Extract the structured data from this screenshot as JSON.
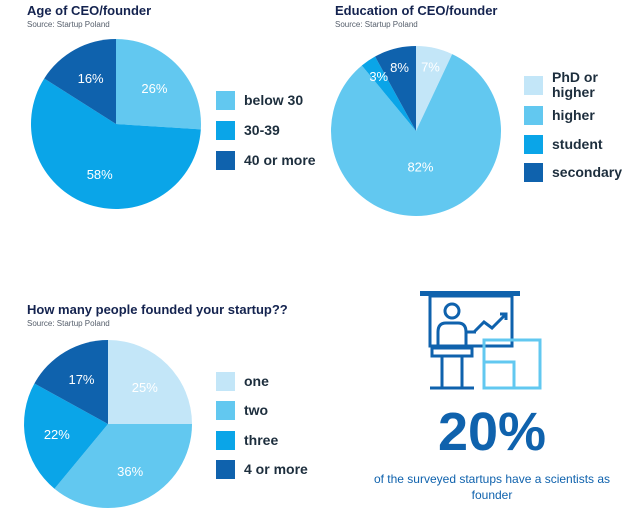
{
  "colors": {
    "lightest": "#c3e6f8",
    "light": "#62c8f0",
    "medium": "#0aa5e8",
    "dark": "#0f62ad",
    "title": "#14234f",
    "slice_label": "#ffffff"
  },
  "charts": {
    "age": {
      "title": "Age of CEO/founder",
      "source": "Source: Startup Poland"
    },
    "education": {
      "title": "Education of CEO/founder",
      "source": "Source: Startup Poland"
    },
    "founders": {
      "title": "How many people founded your startup??",
      "source": "Source: Startup Poland"
    }
  },
  "chart_data": [
    {
      "type": "pie",
      "title": "Age of CEO/founder",
      "categories": [
        "below 30",
        "30-39",
        "40 or more"
      ],
      "values": [
        26,
        58,
        16
      ],
      "labels": [
        "26%",
        "58%",
        "16%"
      ],
      "colors": [
        "#62c8f0",
        "#0aa5e8",
        "#0f62ad"
      ],
      "legend": "right"
    },
    {
      "type": "pie",
      "title": "Education of CEO/founder",
      "categories": [
        "PhD or higher",
        "higher",
        "student",
        "secondary"
      ],
      "values": [
        7,
        82,
        3,
        8
      ],
      "labels": [
        "7%",
        "82%",
        "3%",
        "8%"
      ],
      "colors": [
        "#c3e6f8",
        "#62c8f0",
        "#0aa5e8",
        "#0f62ad"
      ],
      "legend": "right"
    },
    {
      "type": "pie",
      "title": "How many people founded your startup??",
      "categories": [
        "one",
        "two",
        "three",
        "4 or more"
      ],
      "values": [
        25,
        36,
        22,
        17
      ],
      "labels": [
        "25%",
        "36%",
        "22%",
        "17%"
      ],
      "colors": [
        "#c3e6f8",
        "#62c8f0",
        "#0aa5e8",
        "#0f62ad"
      ],
      "legend": "right"
    }
  ],
  "stat": {
    "value": "20%",
    "caption": "of the surveyed startups have a scientists as founder",
    "icon": "presenter-chart-icon"
  }
}
